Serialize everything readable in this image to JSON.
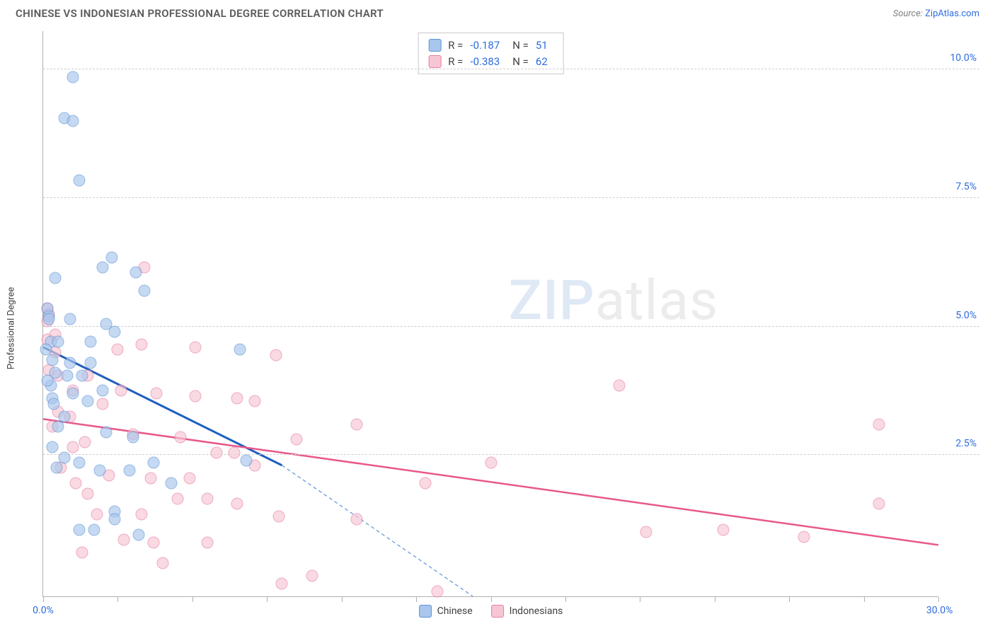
{
  "header": {
    "title": "CHINESE VS INDONESIAN PROFESSIONAL DEGREE CORRELATION CHART",
    "source_prefix": "Source: ",
    "source_name": "ZipAtlas.com"
  },
  "axes": {
    "y_label": "Professional Degree",
    "xlim": [
      0,
      30
    ],
    "ylim": [
      0,
      11
    ],
    "x_ticks": [
      0,
      2.5,
      5,
      7.5,
      10,
      12.5,
      15,
      17.5,
      20,
      22.5,
      25,
      27.5,
      30
    ],
    "x_tick_labels": {
      "0": "0.0%",
      "30": "30.0%"
    },
    "y_gridlines": [
      2.75,
      5.25,
      7.75,
      10.25
    ],
    "y_tick_labels": {
      "2.75": "2.5%",
      "5.25": "5.0%",
      "7.75": "7.5%",
      "10.25": "10.0%"
    }
  },
  "colors": {
    "blue_fill": "#a9c6ec",
    "blue_stroke": "#5b93d6",
    "pink_fill": "#f7c6d4",
    "pink_stroke": "#e87da0",
    "blue_line": "#1f5fbf",
    "pink_line": "#e8588a",
    "text_blue": "#2d6cdf",
    "grid": "#cfcfcf",
    "axis": "#b0b0b0"
  },
  "point_style": {
    "radius": 8.5,
    "opacity": 0.65,
    "stroke_width": 1.4
  },
  "series": {
    "chinese": {
      "label": "Chinese",
      "R": "-0.187",
      "N": "51",
      "points": [
        [
          1.0,
          10.1
        ],
        [
          0.7,
          9.3
        ],
        [
          1.0,
          9.25
        ],
        [
          1.2,
          8.1
        ],
        [
          2.3,
          6.6
        ],
        [
          2.0,
          6.4
        ],
        [
          3.1,
          6.3
        ],
        [
          0.4,
          6.2
        ],
        [
          3.4,
          5.95
        ],
        [
          0.15,
          5.6
        ],
        [
          0.2,
          5.45
        ],
        [
          0.2,
          5.4
        ],
        [
          0.9,
          5.4
        ],
        [
          2.1,
          5.3
        ],
        [
          2.4,
          5.15
        ],
        [
          0.25,
          4.95
        ],
        [
          0.5,
          4.95
        ],
        [
          1.6,
          4.95
        ],
        [
          6.6,
          4.8
        ],
        [
          0.3,
          4.6
        ],
        [
          0.9,
          4.55
        ],
        [
          1.6,
          4.55
        ],
        [
          0.4,
          4.35
        ],
        [
          0.8,
          4.3
        ],
        [
          1.3,
          4.3
        ],
        [
          0.25,
          4.1
        ],
        [
          0.3,
          3.85
        ],
        [
          1.5,
          3.8
        ],
        [
          0.35,
          3.75
        ],
        [
          0.7,
          3.5
        ],
        [
          2.1,
          3.2
        ],
        [
          3.0,
          3.1
        ],
        [
          0.3,
          2.9
        ],
        [
          0.7,
          2.7
        ],
        [
          1.2,
          2.6
        ],
        [
          3.7,
          2.6
        ],
        [
          6.8,
          2.65
        ],
        [
          1.9,
          2.45
        ],
        [
          2.9,
          2.45
        ],
        [
          4.3,
          2.2
        ],
        [
          2.4,
          1.65
        ],
        [
          2.4,
          1.5
        ],
        [
          1.2,
          1.3
        ],
        [
          1.7,
          1.3
        ],
        [
          3.2,
          1.2
        ],
        [
          0.1,
          4.8
        ],
        [
          0.15,
          4.2
        ],
        [
          1.0,
          3.95
        ],
        [
          0.5,
          3.3
        ],
        [
          0.45,
          2.5
        ],
        [
          2.0,
          4.0
        ]
      ],
      "trend": {
        "x1": 0,
        "y1": 4.85,
        "x2": 8.0,
        "y2": 2.55,
        "dash_to_x": 14.4,
        "dash_to_y": 0
      }
    },
    "indonesians": {
      "label": "Indonesians",
      "R": "-0.383",
      "N": "62",
      "points": [
        [
          3.4,
          6.4
        ],
        [
          0.15,
          5.6
        ],
        [
          0.2,
          5.5
        ],
        [
          0.15,
          5.35
        ],
        [
          0.4,
          4.75
        ],
        [
          2.5,
          4.8
        ],
        [
          3.3,
          4.9
        ],
        [
          5.1,
          4.85
        ],
        [
          7.8,
          4.7
        ],
        [
          0.5,
          4.3
        ],
        [
          1.5,
          4.3
        ],
        [
          19.3,
          4.1
        ],
        [
          2.6,
          4.0
        ],
        [
          3.8,
          3.95
        ],
        [
          5.1,
          3.9
        ],
        [
          6.5,
          3.85
        ],
        [
          7.1,
          3.8
        ],
        [
          0.5,
          3.6
        ],
        [
          2.0,
          3.75
        ],
        [
          28.0,
          3.35
        ],
        [
          10.5,
          3.35
        ],
        [
          3.0,
          3.15
        ],
        [
          4.6,
          3.1
        ],
        [
          8.5,
          3.05
        ],
        [
          1.0,
          2.9
        ],
        [
          5.8,
          2.8
        ],
        [
          6.4,
          2.8
        ],
        [
          7.1,
          2.55
        ],
        [
          15.0,
          2.6
        ],
        [
          2.2,
          2.35
        ],
        [
          3.6,
          2.3
        ],
        [
          4.9,
          2.3
        ],
        [
          12.8,
          2.2
        ],
        [
          1.5,
          2.0
        ],
        [
          4.5,
          1.9
        ],
        [
          5.5,
          1.9
        ],
        [
          6.5,
          1.8
        ],
        [
          28.0,
          1.8
        ],
        [
          3.3,
          1.6
        ],
        [
          7.9,
          1.55
        ],
        [
          10.5,
          1.5
        ],
        [
          20.2,
          1.25
        ],
        [
          22.8,
          1.3
        ],
        [
          25.5,
          1.15
        ],
        [
          2.7,
          1.1
        ],
        [
          3.7,
          1.05
        ],
        [
          5.5,
          1.05
        ],
        [
          1.3,
          0.85
        ],
        [
          4.0,
          0.65
        ],
        [
          9.0,
          0.4
        ],
        [
          8.0,
          0.25
        ],
        [
          13.2,
          0.1
        ],
        [
          0.3,
          3.3
        ],
        [
          0.6,
          2.5
        ],
        [
          1.1,
          2.2
        ],
        [
          1.8,
          1.6
        ],
        [
          1.0,
          4.0
        ],
        [
          0.2,
          4.4
        ],
        [
          0.9,
          3.5
        ],
        [
          1.4,
          3.0
        ],
        [
          0.15,
          5.0
        ],
        [
          0.4,
          5.1
        ]
      ],
      "trend": {
        "x1": 0,
        "y1": 3.45,
        "x2": 30,
        "y2": 1.0
      }
    }
  },
  "watermark": {
    "zip": "ZIP",
    "atlas": "atlas"
  },
  "legend_bottom": [
    "Chinese",
    "Indonesians"
  ]
}
